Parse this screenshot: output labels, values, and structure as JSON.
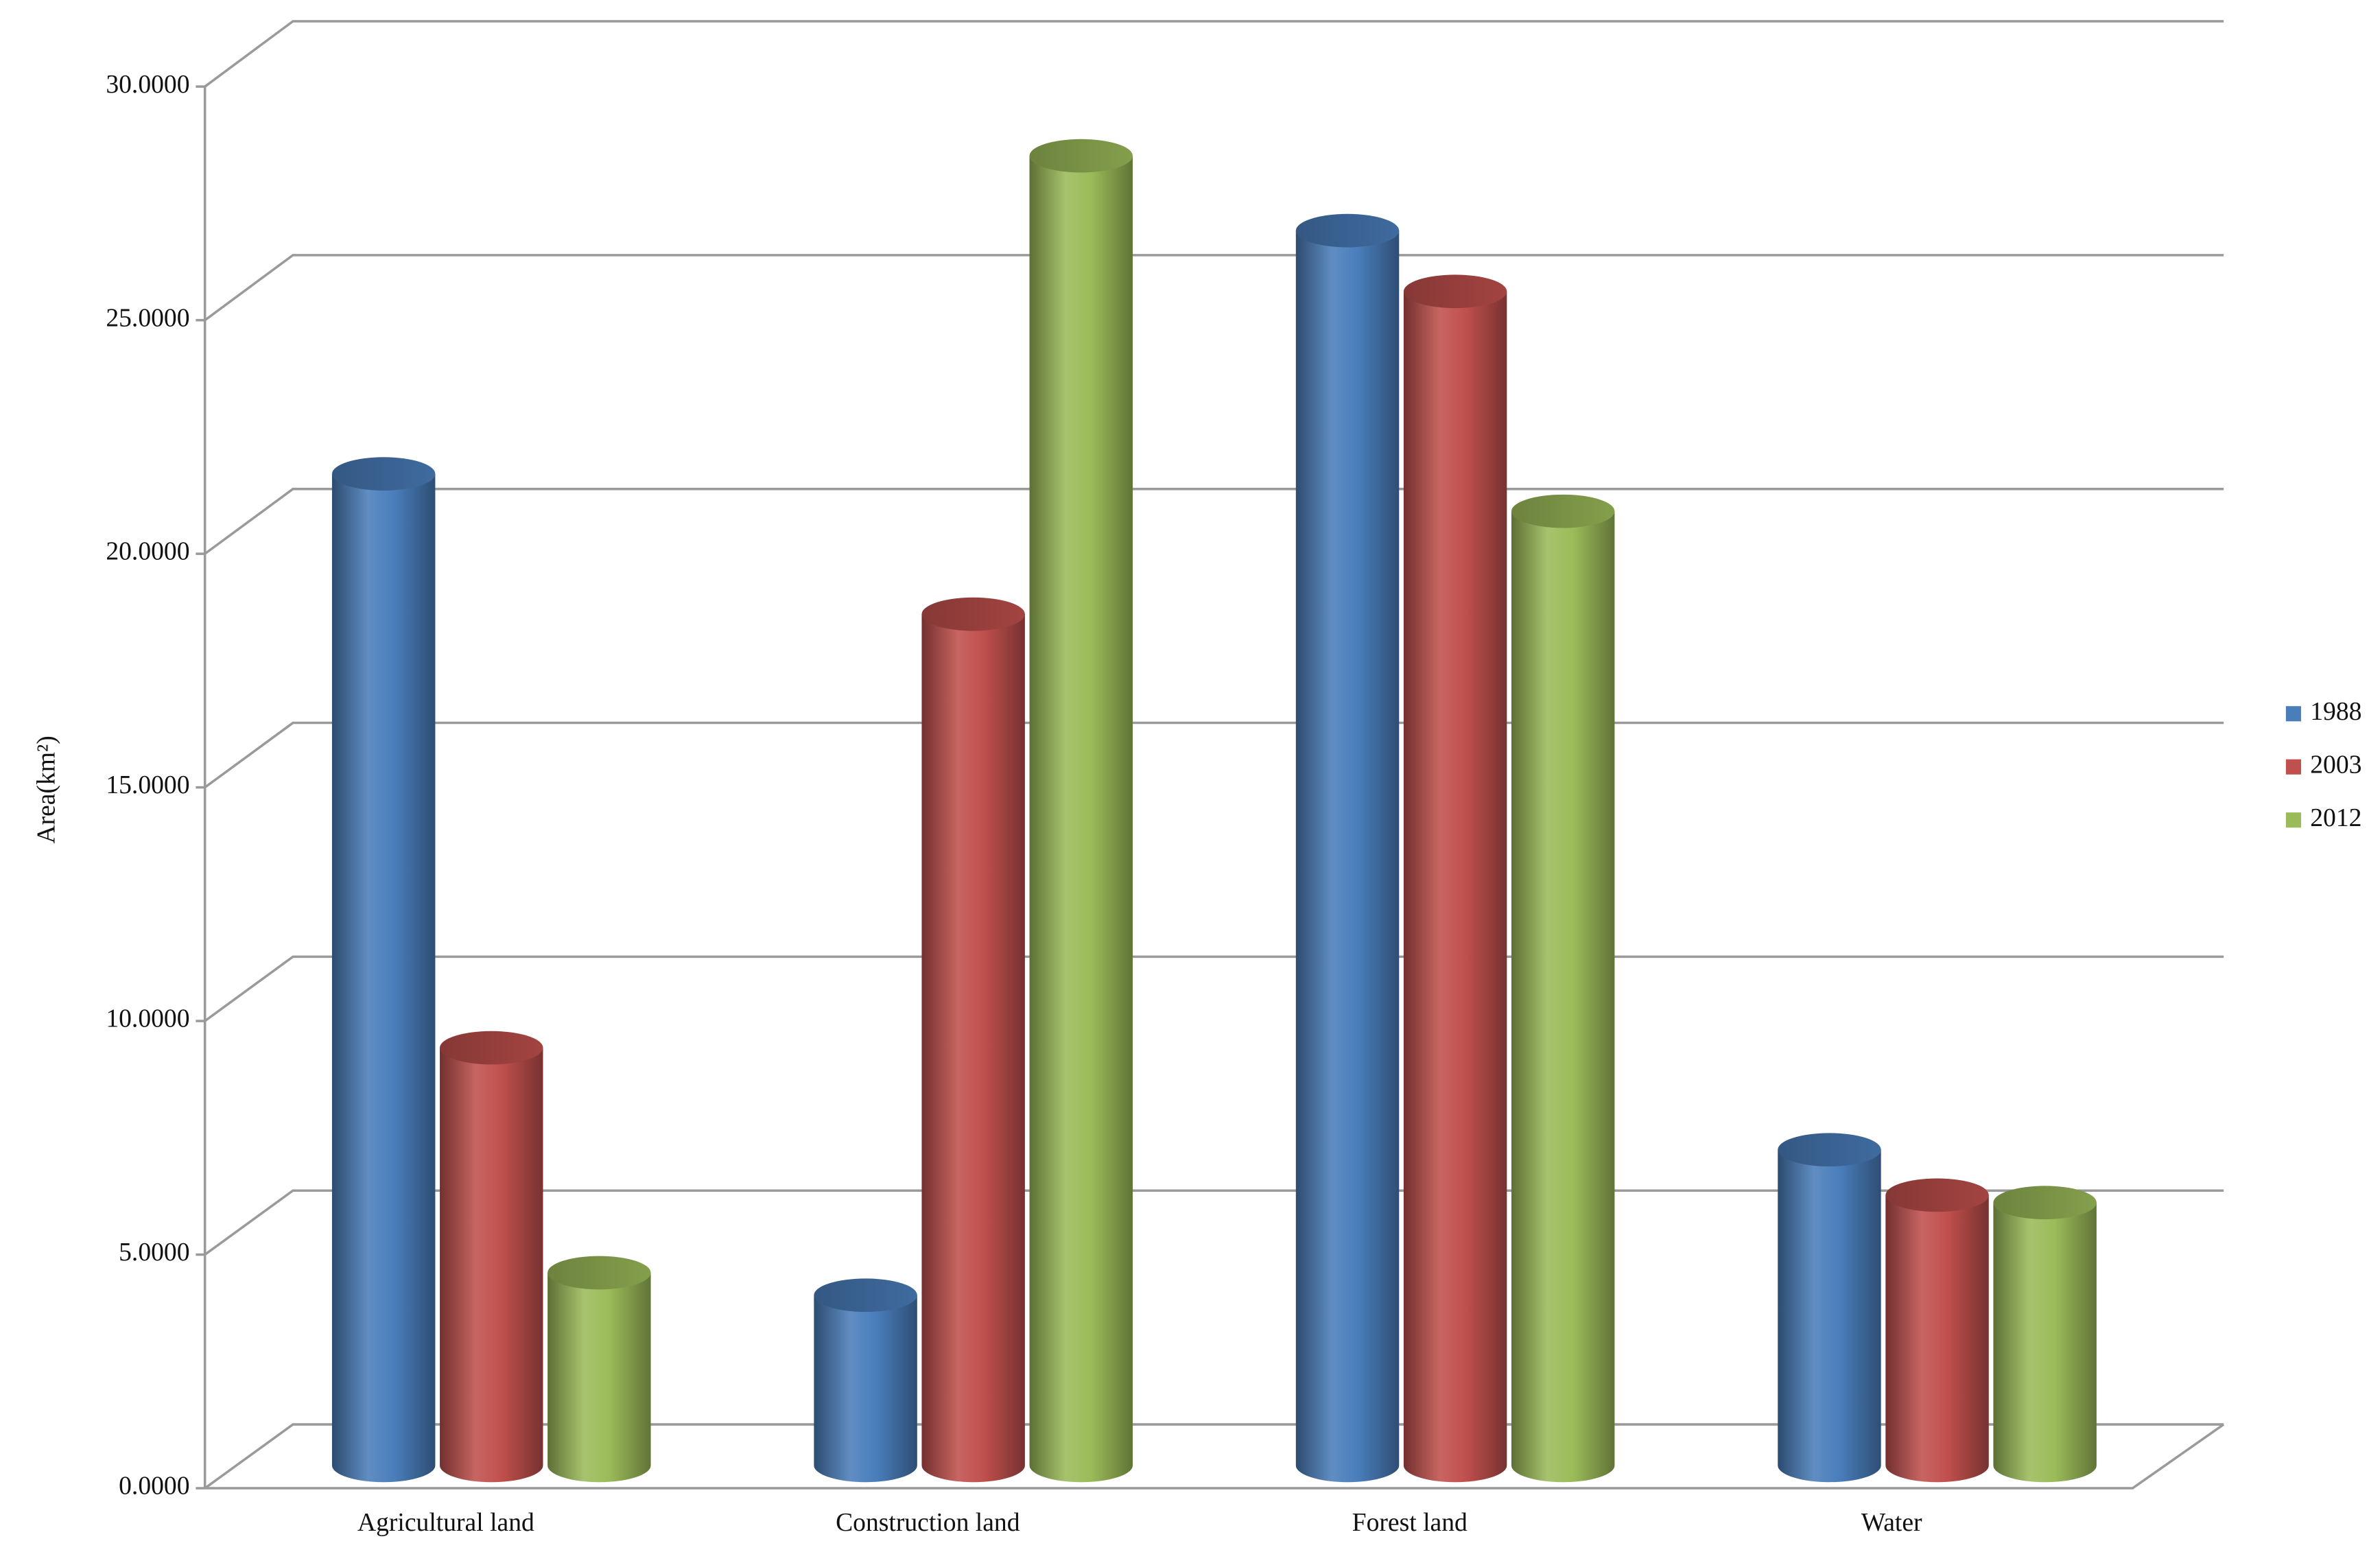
{
  "chart_data": {
    "type": "bar3d",
    "y_label": "Area(km²)",
    "categories": [
      "Agricultural land",
      "Construction land",
      "Forest land",
      "Water"
    ],
    "series": [
      {
        "name": "1988",
        "color": "#4a7ebb",
        "values": [
          21.2,
          3.64,
          26.4,
          6.75
        ]
      },
      {
        "name": "2003",
        "color": "#c0504d",
        "values": [
          8.93,
          18.2,
          25.1,
          5.78
        ]
      },
      {
        "name": "2012",
        "color": "#9bbb59",
        "values": [
          4.12,
          28.0,
          20.4,
          5.62
        ]
      }
    ],
    "ylim": [
      0,
      30
    ],
    "yticks": [
      {
        "value": 0,
        "label": "0.0000"
      },
      {
        "value": 5,
        "label": "5.0000"
      },
      {
        "value": 10,
        "label": "10.0000"
      },
      {
        "value": 15,
        "label": "15.0000"
      },
      {
        "value": 20,
        "label": "20.0000"
      },
      {
        "value": 25,
        "label": "25.0000"
      },
      {
        "value": 30,
        "label": "30.0000"
      }
    ],
    "grid": true,
    "legend": "right"
  }
}
